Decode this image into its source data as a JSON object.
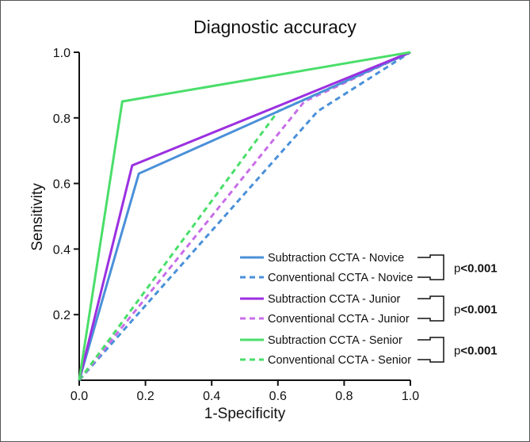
{
  "chart_data": {
    "type": "line",
    "title": "Diagnostic accuracy",
    "xlabel": "1-Specificity",
    "ylabel": "Sensitivity",
    "xlim": [
      0,
      1
    ],
    "ylim": [
      0,
      1
    ],
    "x_ticks": [
      "0.0",
      "0.2",
      "0.4",
      "0.6",
      "0.8",
      "1.0"
    ],
    "y_ticks": [
      "0.2",
      "0.4",
      "0.6",
      "0.8",
      "1.0"
    ],
    "grid": false,
    "legend_position": "bottom-right",
    "series": [
      {
        "name": "Subtraction CCTA - Novice",
        "color": "#4a90d9",
        "style": "solid",
        "points": [
          [
            0,
            0
          ],
          [
            0.18,
            0.63
          ],
          [
            1,
            1
          ]
        ]
      },
      {
        "name": "Conventional CCTA - Novice",
        "color": "#4a90d9",
        "style": "dashed",
        "points": [
          [
            0,
            0
          ],
          [
            0.72,
            0.82
          ],
          [
            1,
            1
          ]
        ]
      },
      {
        "name": "Subtraction CCTA - Junior",
        "color": "#9b30e0",
        "style": "solid",
        "points": [
          [
            0,
            0
          ],
          [
            0.16,
            0.655
          ],
          [
            1,
            1
          ]
        ]
      },
      {
        "name": "Conventional CCTA - Junior",
        "color": "#c86ee8",
        "style": "dashed",
        "points": [
          [
            0,
            0
          ],
          [
            0.68,
            0.85
          ],
          [
            1,
            1
          ]
        ]
      },
      {
        "name": "Subtraction CCTA - Senior",
        "color": "#4ade6a",
        "style": "solid",
        "points": [
          [
            0,
            0
          ],
          [
            0.13,
            0.85
          ],
          [
            1,
            1
          ]
        ]
      },
      {
        "name": "Conventional CCTA - Senior",
        "color": "#4ade6a",
        "style": "dashed",
        "points": [
          [
            0,
            0
          ],
          [
            0.6,
            0.82
          ],
          [
            1,
            1
          ]
        ]
      }
    ],
    "annotations": [
      {
        "pair": [
          "Subtraction CCTA - Novice",
          "Conventional CCTA - Novice"
        ],
        "prefix": "p",
        "value": "<0.001"
      },
      {
        "pair": [
          "Subtraction CCTA - Junior",
          "Conventional CCTA - Junior"
        ],
        "prefix": "p",
        "value": "<0.001"
      },
      {
        "pair": [
          "Subtraction CCTA - Senior",
          "Conventional CCTA - Senior"
        ],
        "prefix": "p",
        "value": "<0.001"
      }
    ]
  }
}
